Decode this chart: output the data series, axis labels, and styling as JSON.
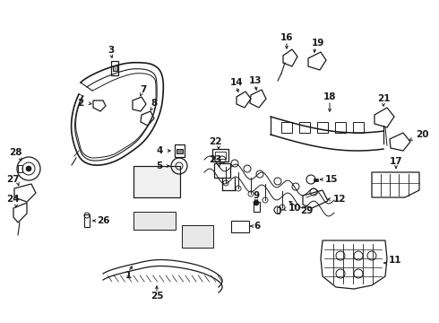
{
  "bg_color": "#ffffff",
  "line_color": "#1a1a1a",
  "figwidth": 4.9,
  "figheight": 3.6,
  "dpi": 100,
  "xlim": [
    0,
    490
  ],
  "ylim": [
    0,
    360
  ]
}
